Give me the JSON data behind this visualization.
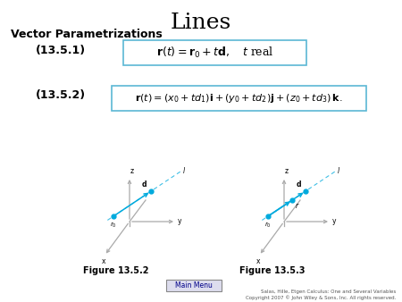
{
  "title": "Lines",
  "subtitle": "Vector Parametrizations",
  "eq1_label": "(13.5.1)",
  "eq1_text": "$\\mathbf{r}(t) = \\mathbf{r}_0 + t\\mathbf{d},\\quad t$ real",
  "eq2_label": "(13.5.2)",
  "eq2_text": "$\\mathbf{r}(t) = (x_0 + td_1)\\mathbf{i} + (y_0 + td_2)\\mathbf{j} + (z_0 + td_3)\\,\\mathbf{k}.$",
  "fig1_caption": "Figure 13.5.2",
  "fig2_caption": "Figure 13.5.3",
  "box_color": "#5bb8d4",
  "axis_color": "#aaaaaa",
  "line_color": "#00aadd",
  "dot_color": "#00aadd",
  "bg_color": "#ffffff",
  "main_menu_text": "Main Menu",
  "copyright_line1": "Salas, Hille, Etgen Calculus: One and Several Variables",
  "copyright_line2": "Copyright 2007 © John Wiley & Sons, Inc. All rights reserved.",
  "title_fontsize": 18,
  "subtitle_fontsize": 9,
  "eq_label_fontsize": 9,
  "eq1_fontsize": 9,
  "eq2_fontsize": 8,
  "caption_fontsize": 7
}
